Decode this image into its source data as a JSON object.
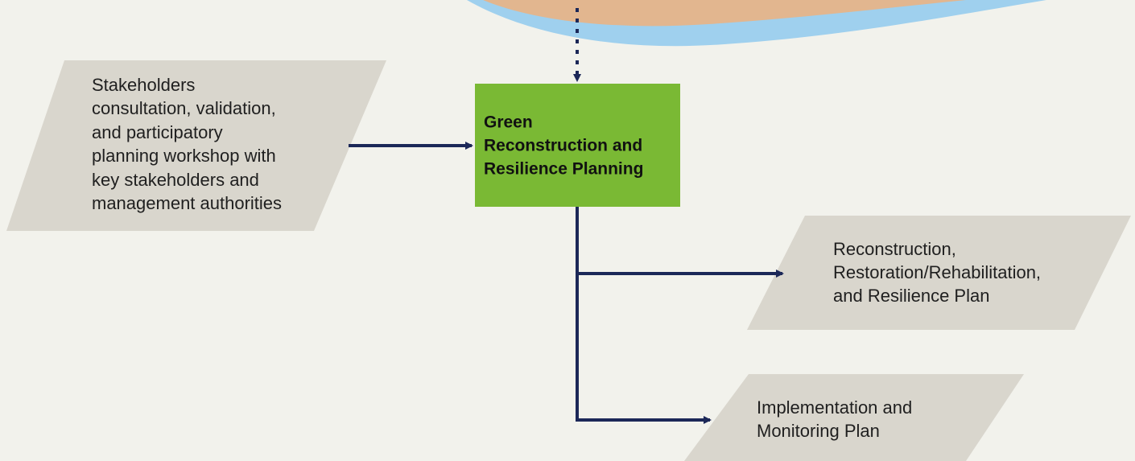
{
  "nodes": [
    {
      "lines": [
        "Stakeholders",
        "consultation, validation,",
        "and participatory",
        "planning workshop with",
        "key stakeholders and",
        "management authorities"
      ]
    },
    {
      "lines": [
        "Green",
        "Reconstruction and",
        "Resilience Planning"
      ]
    },
    {
      "lines": [
        "Reconstruction,",
        "Restoration/Rehabilitation,",
        "and Resilience Plan"
      ]
    },
    {
      "lines": [
        "Implementation and",
        "Monitoring Plan"
      ]
    }
  ]
}
